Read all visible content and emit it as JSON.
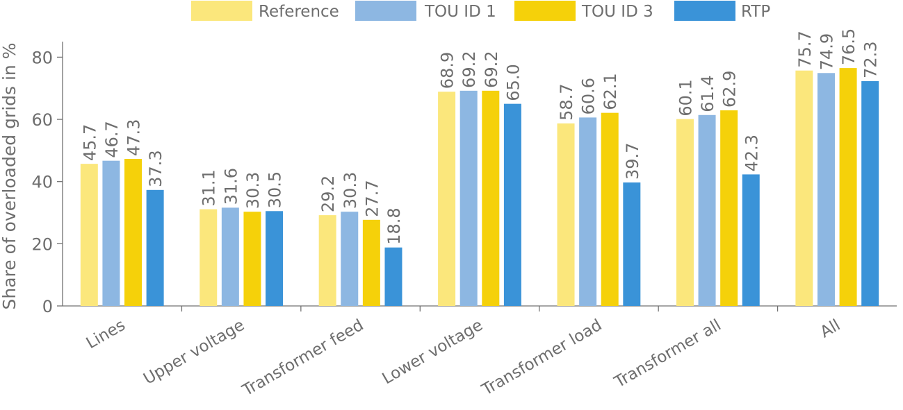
{
  "chart_data": {
    "type": "bar",
    "title": "",
    "xlabel": "",
    "ylabel": "Share of overloaded grids in %",
    "ylim": [
      0,
      85
    ],
    "yticks": [
      0,
      20,
      40,
      60,
      80
    ],
    "grid": false,
    "legend_position": "top",
    "categories": [
      "Lines",
      "Upper voltage",
      "Transformer feed",
      "Lower voltage",
      "Transformer load",
      "Transformer all",
      "All"
    ],
    "series": [
      {
        "name": "Reference",
        "color": "#FBE77C",
        "values": [
          45.7,
          31.1,
          29.2,
          68.9,
          58.7,
          60.1,
          75.7
        ],
        "labels": [
          "45.7",
          "31.1",
          "29.2",
          "68.9",
          "58.7",
          "60.1",
          "75.7"
        ]
      },
      {
        "name": "TOU ID 1",
        "color": "#8DB7E2",
        "values": [
          46.7,
          31.6,
          30.3,
          69.2,
          60.6,
          61.4,
          74.9
        ],
        "labels": [
          "46.7",
          "31.6",
          "30.3",
          "69.2",
          "60.6",
          "61.4",
          "74.9"
        ]
      },
      {
        "name": "TOU ID 3",
        "color": "#F5D10A",
        "values": [
          47.3,
          30.3,
          27.7,
          69.2,
          62.1,
          62.9,
          76.5
        ],
        "labels": [
          "47.3",
          "30.3",
          "27.7",
          "69.2",
          "62.1",
          "62.9",
          "76.5"
        ]
      },
      {
        "name": "RTP",
        "color": "#3A93D8",
        "values": [
          37.3,
          30.5,
          18.8,
          65.0,
          39.7,
          42.3,
          72.3
        ],
        "labels": [
          "37.3",
          "30.5",
          "18.8",
          "65.0",
          "39.7",
          "42.3",
          "72.3"
        ]
      }
    ],
    "axis_color": "#707070",
    "label_color": "#6E6E6E"
  }
}
